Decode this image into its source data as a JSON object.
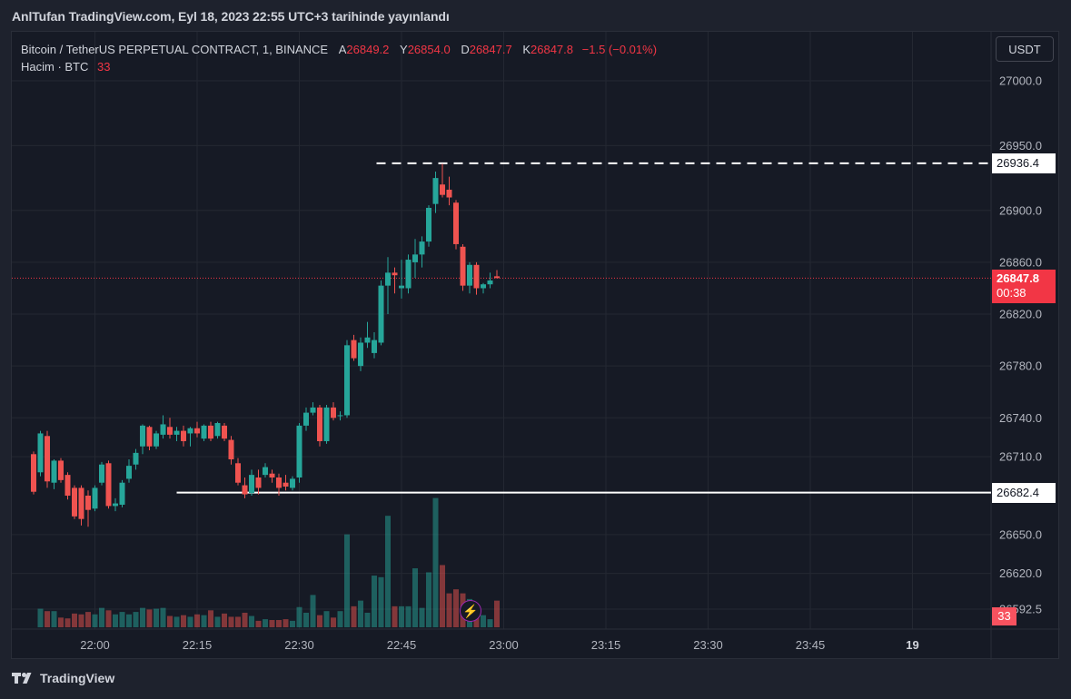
{
  "header": {
    "published": "AnlTufan TradingView.com, Eyl 18, 2023 22:55 UTC+3 tarihinde yayınlandı"
  },
  "legend": {
    "symbol": "Bitcoin / TetherUS PERPETUAL CONTRACT, 1, BINANCE",
    "open_label": "A",
    "open": "26849.2",
    "high_label": "Y",
    "high": "26854.0",
    "low_label": "D",
    "low": "26847.7",
    "close_label": "K",
    "close": "26847.8",
    "change": "−1.5 (−0.01%)",
    "volume_label": "Hacim · BTC",
    "volume": "33"
  },
  "currency_button": "USDT",
  "tags": {
    "high_level": "26936.4",
    "low_level": "26682.4",
    "last_price": "26847.8",
    "countdown": "00:38",
    "last_volume": "33"
  },
  "footer": {
    "brand": "TradingView"
  },
  "colors": {
    "up": "#26a69a",
    "down": "#ef5350",
    "background": "#161a25",
    "grid": "#242832",
    "text": "#b2b5be"
  },
  "chart_data": {
    "type": "candlestick",
    "timeframe": "1",
    "y_ticks": [
      27000.0,
      26950.0,
      26900.0,
      26860.0,
      26820.0,
      26780.0,
      26740.0,
      26710.0,
      26650.0,
      26620.0,
      26592.5
    ],
    "y_tick_labels": [
      "27000.0",
      "26950.0",
      "26900.0",
      "26860.0",
      "26820.0",
      "26780.0",
      "26740.0",
      "26710.0",
      "26650.0",
      "26620.0",
      "26592.5"
    ],
    "x_ticks": [
      "22:00",
      "22:15",
      "22:30",
      "22:45",
      "23:00",
      "23:15",
      "23:30",
      "23:45",
      "19"
    ],
    "x_tick_bold": "19",
    "horizontal_lines": [
      {
        "price": 26936.4,
        "style": "dashed",
        "from": "22:44"
      },
      {
        "price": 26682.4,
        "style": "solid",
        "from": "22:12"
      }
    ],
    "last_price": 26847.8,
    "candles": [
      {
        "t": "21:51",
        "o": 26712,
        "h": 26714,
        "l": 26681,
        "c": 26683,
        "v": 0
      },
      {
        "t": "21:52",
        "o": 26698,
        "h": 26730,
        "l": 26695,
        "c": 26728,
        "v": 23
      },
      {
        "t": "21:53",
        "o": 26726,
        "h": 26730,
        "l": 26686,
        "c": 26691,
        "v": 20
      },
      {
        "t": "21:54",
        "o": 26690,
        "h": 26708,
        "l": 26685,
        "c": 26707,
        "v": 20
      },
      {
        "t": "21:55",
        "o": 26707,
        "h": 26709,
        "l": 26690,
        "c": 26692,
        "v": 12
      },
      {
        "t": "21:56",
        "o": 26696,
        "h": 26698,
        "l": 26677,
        "c": 26680,
        "v": 11
      },
      {
        "t": "21:57",
        "o": 26686,
        "h": 26688,
        "l": 26662,
        "c": 26664,
        "v": 17
      },
      {
        "t": "21:58",
        "o": 26686,
        "h": 26688,
        "l": 26657,
        "c": 26662,
        "v": 16
      },
      {
        "t": "21:59",
        "o": 26680,
        "h": 26684,
        "l": 26656,
        "c": 26669,
        "v": 19
      },
      {
        "t": "22:00",
        "o": 26670,
        "h": 26688,
        "l": 26668,
        "c": 26686,
        "v": 16
      },
      {
        "t": "22:01",
        "o": 26690,
        "h": 26706,
        "l": 26688,
        "c": 26704,
        "v": 24
      },
      {
        "t": "22:02",
        "o": 26705,
        "h": 26707,
        "l": 26670,
        "c": 26672,
        "v": 21
      },
      {
        "t": "22:03",
        "o": 26672,
        "h": 26678,
        "l": 26668,
        "c": 26674,
        "v": 16
      },
      {
        "t": "22:04",
        "o": 26673,
        "h": 26692,
        "l": 26671,
        "c": 26690,
        "v": 19
      },
      {
        "t": "22:05",
        "o": 26693,
        "h": 26708,
        "l": 26690,
        "c": 26703,
        "v": 16
      },
      {
        "t": "22:06",
        "o": 26704,
        "h": 26716,
        "l": 26700,
        "c": 26713,
        "v": 19
      },
      {
        "t": "22:07",
        "o": 26718,
        "h": 26735,
        "l": 26712,
        "c": 26734,
        "v": 24
      },
      {
        "t": "22:08",
        "o": 26733,
        "h": 26734,
        "l": 26715,
        "c": 26718,
        "v": 22
      },
      {
        "t": "22:09",
        "o": 26718,
        "h": 26730,
        "l": 26716,
        "c": 26728,
        "v": 23
      },
      {
        "t": "22:10",
        "o": 26727,
        "h": 26742,
        "l": 26724,
        "c": 26735,
        "v": 24
      },
      {
        "t": "22:11",
        "o": 26733,
        "h": 26740,
        "l": 26724,
        "c": 26727,
        "v": 14
      },
      {
        "t": "22:12",
        "o": 26727,
        "h": 26733,
        "l": 26722,
        "c": 26730,
        "v": 13
      },
      {
        "t": "22:13",
        "o": 26730,
        "h": 26734,
        "l": 26718,
        "c": 26722,
        "v": 15
      },
      {
        "t": "22:14",
        "o": 26728,
        "h": 26733,
        "l": 26718,
        "c": 26732,
        "v": 13
      },
      {
        "t": "22:15",
        "o": 26732,
        "h": 26737,
        "l": 26725,
        "c": 26728,
        "v": 16
      },
      {
        "t": "22:16",
        "o": 26724,
        "h": 26735,
        "l": 26722,
        "c": 26734,
        "v": 15
      },
      {
        "t": "22:17",
        "o": 26734,
        "h": 26737,
        "l": 26722,
        "c": 26724,
        "v": 21
      },
      {
        "t": "22:18",
        "o": 26726,
        "h": 26737,
        "l": 26724,
        "c": 26736,
        "v": 13
      },
      {
        "t": "22:19",
        "o": 26734,
        "h": 26736,
        "l": 26722,
        "c": 26724,
        "v": 17
      },
      {
        "t": "22:20",
        "o": 26723,
        "h": 26726,
        "l": 26704,
        "c": 26708,
        "v": 13
      },
      {
        "t": "22:21",
        "o": 26705,
        "h": 26709,
        "l": 26688,
        "c": 26690,
        "v": 13
      },
      {
        "t": "22:22",
        "o": 26688,
        "h": 26694,
        "l": 26678,
        "c": 26681,
        "v": 18
      },
      {
        "t": "22:23",
        "o": 26682,
        "h": 26700,
        "l": 26680,
        "c": 26696,
        "v": 14
      },
      {
        "t": "22:24",
        "o": 26694,
        "h": 26700,
        "l": 26681,
        "c": 26686,
        "v": 8
      },
      {
        "t": "22:25",
        "o": 26696,
        "h": 26705,
        "l": 26694,
        "c": 26702,
        "v": 10
      },
      {
        "t": "22:26",
        "o": 26697,
        "h": 26700,
        "l": 26690,
        "c": 26694,
        "v": 9
      },
      {
        "t": "22:27",
        "o": 26694,
        "h": 26697,
        "l": 26680,
        "c": 26686,
        "v": 9
      },
      {
        "t": "22:28",
        "o": 26690,
        "h": 26696,
        "l": 26684,
        "c": 26687,
        "v": 10
      },
      {
        "t": "22:29",
        "o": 26686,
        "h": 26695,
        "l": 26684,
        "c": 26693,
        "v": 8
      },
      {
        "t": "22:30",
        "o": 26694,
        "h": 26736,
        "l": 26690,
        "c": 26734,
        "v": 25
      },
      {
        "t": "22:31",
        "o": 26734,
        "h": 26748,
        "l": 26730,
        "c": 26744,
        "v": 18
      },
      {
        "t": "22:32",
        "o": 26744,
        "h": 26752,
        "l": 26742,
        "c": 26748,
        "v": 40
      },
      {
        "t": "22:33",
        "o": 26748,
        "h": 26750,
        "l": 26718,
        "c": 26722,
        "v": 15
      },
      {
        "t": "22:34",
        "o": 26722,
        "h": 26750,
        "l": 26720,
        "c": 26748,
        "v": 20
      },
      {
        "t": "22:35",
        "o": 26748,
        "h": 26752,
        "l": 26738,
        "c": 26740,
        "v": 12
      },
      {
        "t": "22:36",
        "o": 26742,
        "h": 26745,
        "l": 26738,
        "c": 26742,
        "v": 20
      },
      {
        "t": "22:37",
        "o": 26742,
        "h": 26800,
        "l": 26740,
        "c": 26796,
        "v": 115
      },
      {
        "t": "22:38",
        "o": 26800,
        "h": 26804,
        "l": 26784,
        "c": 26786,
        "v": 26
      },
      {
        "t": "22:39",
        "o": 26780,
        "h": 26802,
        "l": 26776,
        "c": 26798,
        "v": 33
      },
      {
        "t": "22:40",
        "o": 26798,
        "h": 26814,
        "l": 26794,
        "c": 26802,
        "v": 18
      },
      {
        "t": "22:41",
        "o": 26790,
        "h": 26806,
        "l": 26786,
        "c": 26800,
        "v": 64
      },
      {
        "t": "22:42",
        "o": 26798,
        "h": 26846,
        "l": 26796,
        "c": 26842,
        "v": 62
      },
      {
        "t": "22:43",
        "o": 26842,
        "h": 26864,
        "l": 26820,
        "c": 26852,
        "v": 138
      },
      {
        "t": "22:44",
        "o": 26852,
        "h": 26856,
        "l": 26836,
        "c": 26850,
        "v": 26
      },
      {
        "t": "22:45",
        "o": 26840,
        "h": 26862,
        "l": 26832,
        "c": 26842,
        "v": 26
      },
      {
        "t": "22:46",
        "o": 26840,
        "h": 26866,
        "l": 26836,
        "c": 26862,
        "v": 26
      },
      {
        "t": "22:47",
        "o": 26860,
        "h": 26878,
        "l": 26848,
        "c": 26866,
        "v": 73
      },
      {
        "t": "22:48",
        "o": 26866,
        "h": 26880,
        "l": 26856,
        "c": 26876,
        "v": 24
      },
      {
        "t": "22:49",
        "o": 26876,
        "h": 26904,
        "l": 26872,
        "c": 26902,
        "v": 68
      },
      {
        "t": "22:50",
        "o": 26905,
        "h": 26930,
        "l": 26898,
        "c": 26925,
        "v": 160
      },
      {
        "t": "22:51",
        "o": 26920,
        "h": 26936,
        "l": 26910,
        "c": 26912,
        "v": 77
      },
      {
        "t": "22:52",
        "o": 26916,
        "h": 26926,
        "l": 26904,
        "c": 26910,
        "v": 42
      },
      {
        "t": "22:53",
        "o": 26906,
        "h": 26908,
        "l": 26870,
        "c": 26874,
        "v": 47
      },
      {
        "t": "22:54",
        "o": 26872,
        "h": 26874,
        "l": 26838,
        "c": 26842,
        "v": 42
      },
      {
        "t": "22:55",
        "o": 26842,
        "h": 26860,
        "l": 26836,
        "c": 26858,
        "v": 35
      },
      {
        "t": "22:56",
        "o": 26858,
        "h": 26860,
        "l": 26835,
        "c": 26840,
        "v": 22
      },
      {
        "t": "22:57",
        "o": 26840,
        "h": 26844,
        "l": 26836,
        "c": 26843,
        "v": 15
      },
      {
        "t": "22:58",
        "o": 26843,
        "h": 26852,
        "l": 26840,
        "c": 26846,
        "v": 10
      },
      {
        "t": "22:59",
        "o": 26849.2,
        "h": 26854.0,
        "l": 26847.7,
        "c": 26847.8,
        "v": 33
      }
    ]
  }
}
